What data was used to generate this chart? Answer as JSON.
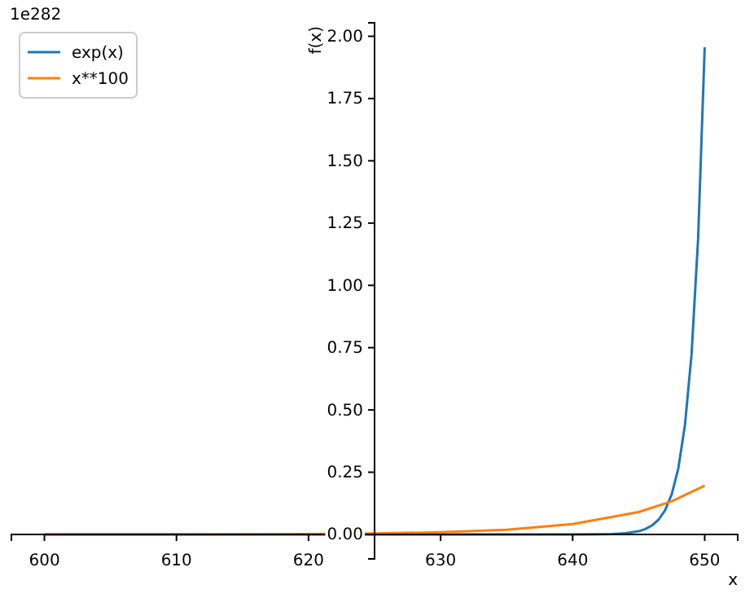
{
  "chart_data": {
    "type": "line",
    "xlabel": "x",
    "ylabel": "f(x)",
    "annotations": [
      "1e282"
    ],
    "series": [
      {
        "name": "exp(x)",
        "color": "#1f77b4",
        "x": [
          600,
          610,
          620,
          630,
          635,
          640,
          642,
          643,
          644,
          645,
          645.5,
          646,
          646.5,
          647,
          647.5,
          648,
          648.5,
          649,
          649.5,
          650
        ],
        "values": [
          0,
          0,
          0,
          0,
          0,
          0,
          0.001,
          0.002,
          0.005,
          0.013,
          0.022,
          0.036,
          0.059,
          0.097,
          0.161,
          0.265,
          0.437,
          0.72,
          1.186,
          1.956
        ]
      },
      {
        "name": "x**100",
        "color": "#ff7f0e",
        "x": [
          600,
          610,
          620,
          625,
          630,
          635,
          640,
          645,
          647.5,
          650
        ],
        "values": [
          0,
          0,
          0.002,
          0.004,
          0.009,
          0.019,
          0.042,
          0.09,
          0.133,
          0.196
        ]
      }
    ],
    "xlim": [
      597.5,
      652.5
    ],
    "xticks": [
      600,
      610,
      620,
      630,
      640,
      650
    ],
    "ylim": [
      -0.098,
      2.054
    ],
    "yticks": [
      {
        "value": 0,
        "label": "0.00"
      },
      {
        "value": 0.25,
        "label": "0.25"
      },
      {
        "value": 0.5,
        "label": "0.50"
      },
      {
        "value": 0.75,
        "label": "0.75"
      },
      {
        "value": 1,
        "label": "1.00"
      },
      {
        "value": 1.25,
        "label": "1.25"
      },
      {
        "value": 1.5,
        "label": "1.50"
      },
      {
        "value": 1.75,
        "label": "1.75"
      },
      {
        "value": 2,
        "label": "2.00"
      }
    ],
    "grid": false,
    "legend": "top left",
    "line_style": "solid",
    "marker": "none"
  }
}
